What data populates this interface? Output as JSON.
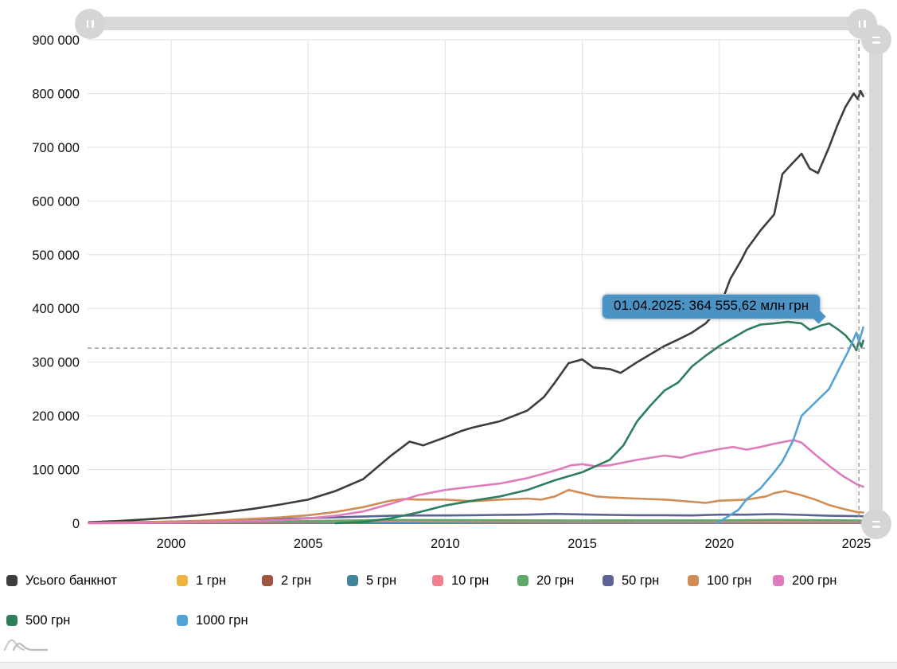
{
  "tooltip": {
    "text": "01.04.2025: 364 555,62 млн грн",
    "bg": "#4b93c5"
  },
  "cursor": {
    "x_year": 2025.09,
    "y_value": 326000
  },
  "axes": {
    "y_ticks": [
      0,
      100000,
      200000,
      300000,
      400000,
      500000,
      600000,
      700000,
      800000,
      900000
    ],
    "y_tick_labels": [
      "0",
      "100 000",
      "200 000",
      "300 000",
      "400 000",
      "500 000",
      "600 000",
      "700 000",
      "800 000",
      "900 000"
    ],
    "x_ticks": [
      2000,
      2005,
      2010,
      2015,
      2020,
      2025
    ],
    "x_tick_labels": [
      "2000",
      "2005",
      "2010",
      "2015",
      "2020",
      "2025"
    ]
  },
  "chart_data": {
    "type": "line",
    "title": "",
    "xlabel": "",
    "ylabel": "",
    "units": "млн грн",
    "xlim": [
      1996.95,
      2025.45
    ],
    "ylim": [
      0,
      900000
    ],
    "grid": true,
    "legend_position": "bottom",
    "highlighted_point": {
      "date": "01.04.2025",
      "value": 364555.62,
      "series": "1000 грн"
    },
    "series": [
      {
        "name": "Усього банкнот",
        "color": "#3d3d3d",
        "points": [
          [
            1997,
            2000
          ],
          [
            1998,
            4000
          ],
          [
            1999,
            7000
          ],
          [
            2000,
            10500
          ],
          [
            2001,
            15000
          ],
          [
            2002,
            20500
          ],
          [
            2003,
            27000
          ],
          [
            2004,
            35000
          ],
          [
            2005,
            44000
          ],
          [
            2006,
            60000
          ],
          [
            2007,
            82000
          ],
          [
            2008,
            125000
          ],
          [
            2008.7,
            152000
          ],
          [
            2009.2,
            145000
          ],
          [
            2010,
            160000
          ],
          [
            2010.6,
            172000
          ],
          [
            2011,
            178000
          ],
          [
            2012,
            190000
          ],
          [
            2013,
            210000
          ],
          [
            2013.6,
            235000
          ],
          [
            2014,
            262000
          ],
          [
            2014.5,
            298000
          ],
          [
            2015,
            305000
          ],
          [
            2015.4,
            290000
          ],
          [
            2016,
            287000
          ],
          [
            2016.4,
            280000
          ],
          [
            2017,
            300000
          ],
          [
            2017.6,
            318000
          ],
          [
            2018,
            330000
          ],
          [
            2018.5,
            342000
          ],
          [
            2019,
            355000
          ],
          [
            2019.5,
            372000
          ],
          [
            2020,
            400000
          ],
          [
            2020.4,
            455000
          ],
          [
            2020.8,
            490000
          ],
          [
            2021,
            510000
          ],
          [
            2021.5,
            545000
          ],
          [
            2022,
            575000
          ],
          [
            2022.3,
            650000
          ],
          [
            2022.7,
            672000
          ],
          [
            2023,
            688000
          ],
          [
            2023.3,
            660000
          ],
          [
            2023.6,
            652000
          ],
          [
            2024,
            700000
          ],
          [
            2024.3,
            740000
          ],
          [
            2024.6,
            775000
          ],
          [
            2024.9,
            800000
          ],
          [
            2025.05,
            790000
          ],
          [
            2025.15,
            805000
          ],
          [
            2025.25,
            795000
          ]
        ]
      },
      {
        "name": "1 грн",
        "color": "#eab53e",
        "points": [
          [
            1997,
            250
          ],
          [
            2000,
            400
          ],
          [
            2005,
            600
          ],
          [
            2010,
            650
          ],
          [
            2015,
            620
          ],
          [
            2020,
            620
          ],
          [
            2025.25,
            600
          ]
        ]
      },
      {
        "name": "2 грн",
        "color": "#a2543f",
        "points": [
          [
            1997,
            350
          ],
          [
            2000,
            550
          ],
          [
            2005,
            850
          ],
          [
            2010,
            950
          ],
          [
            2015,
            900
          ],
          [
            2020,
            900
          ],
          [
            2025.25,
            850
          ]
        ]
      },
      {
        "name": "5 грн",
        "color": "#45839d",
        "points": [
          [
            1997,
            600
          ],
          [
            2000,
            1000
          ],
          [
            2005,
            1700
          ],
          [
            2008,
            2000
          ],
          [
            2010,
            1900
          ],
          [
            2015,
            1700
          ],
          [
            2020,
            1700
          ],
          [
            2025.25,
            1600
          ]
        ]
      },
      {
        "name": "10 грн",
        "color": "#f07e8e",
        "points": [
          [
            1997,
            900
          ],
          [
            2000,
            1600
          ],
          [
            2005,
            3000
          ],
          [
            2008,
            3600
          ],
          [
            2010,
            3200
          ],
          [
            2015,
            2800
          ],
          [
            2020,
            2800
          ],
          [
            2025.25,
            2600
          ]
        ]
      },
      {
        "name": "20 грн",
        "color": "#5ea86a",
        "points": [
          [
            1997,
            600
          ],
          [
            2000,
            1500
          ],
          [
            2005,
            4200
          ],
          [
            2008,
            6200
          ],
          [
            2010,
            5800
          ],
          [
            2015,
            5200
          ],
          [
            2020,
            5400
          ],
          [
            2022,
            6200
          ],
          [
            2025.25,
            5200
          ]
        ]
      },
      {
        "name": "50 грн",
        "color": "#5d6295",
        "points": [
          [
            1997,
            1200
          ],
          [
            1999,
            2200
          ],
          [
            2000,
            3000
          ],
          [
            2002,
            5200
          ],
          [
            2004,
            8000
          ],
          [
            2005,
            9500
          ],
          [
            2006,
            11000
          ],
          [
            2007,
            12500
          ],
          [
            2008,
            14000
          ],
          [
            2009,
            14500
          ],
          [
            2010,
            14500
          ],
          [
            2011,
            15000
          ],
          [
            2012,
            15500
          ],
          [
            2013,
            16000
          ],
          [
            2014,
            17500
          ],
          [
            2015,
            16500
          ],
          [
            2016,
            15500
          ],
          [
            2017,
            15000
          ],
          [
            2018,
            15000
          ],
          [
            2019,
            14500
          ],
          [
            2020,
            16000
          ],
          [
            2021,
            16000
          ],
          [
            2022,
            17000
          ],
          [
            2023,
            15500
          ],
          [
            2024,
            14000
          ],
          [
            2025.25,
            13000
          ]
        ]
      },
      {
        "name": "100 грн",
        "color": "#d08d57",
        "points": [
          [
            1997,
            800
          ],
          [
            1999,
            2000
          ],
          [
            2000,
            3200
          ],
          [
            2002,
            6000
          ],
          [
            2004,
            11000
          ],
          [
            2005,
            15000
          ],
          [
            2006,
            21000
          ],
          [
            2007,
            30000
          ],
          [
            2008,
            42000
          ],
          [
            2008.5,
            45000
          ],
          [
            2009,
            44000
          ],
          [
            2010,
            44000
          ],
          [
            2011,
            41000
          ],
          [
            2012,
            44000
          ],
          [
            2013,
            46000
          ],
          [
            2013.5,
            44000
          ],
          [
            2014,
            50000
          ],
          [
            2014.5,
            62000
          ],
          [
            2015,
            56000
          ],
          [
            2015.5,
            50000
          ],
          [
            2016,
            48000
          ],
          [
            2017,
            46000
          ],
          [
            2018,
            44000
          ],
          [
            2019,
            40000
          ],
          [
            2019.5,
            38000
          ],
          [
            2020,
            42000
          ],
          [
            2021,
            44000
          ],
          [
            2021.7,
            50000
          ],
          [
            2022,
            56000
          ],
          [
            2022.4,
            60000
          ],
          [
            2023,
            52000
          ],
          [
            2023.5,
            44000
          ],
          [
            2024,
            34000
          ],
          [
            2024.5,
            27000
          ],
          [
            2025,
            21000
          ],
          [
            2025.25,
            20000
          ]
        ]
      },
      {
        "name": "200 грн",
        "color": "#de7cbc",
        "points": [
          [
            1997,
            200
          ],
          [
            1999,
            600
          ],
          [
            2000,
            1200
          ],
          [
            2002,
            3000
          ],
          [
            2004,
            6000
          ],
          [
            2005,
            9000
          ],
          [
            2006,
            14000
          ],
          [
            2007,
            22000
          ],
          [
            2008,
            36000
          ],
          [
            2009,
            52000
          ],
          [
            2010,
            62000
          ],
          [
            2011,
            68000
          ],
          [
            2012,
            74000
          ],
          [
            2013,
            84000
          ],
          [
            2014,
            98000
          ],
          [
            2014.6,
            108000
          ],
          [
            2015,
            110000
          ],
          [
            2015.5,
            106000
          ],
          [
            2016,
            108000
          ],
          [
            2017,
            118000
          ],
          [
            2018,
            126000
          ],
          [
            2018.6,
            122000
          ],
          [
            2019,
            128000
          ],
          [
            2020,
            138000
          ],
          [
            2020.5,
            142000
          ],
          [
            2021,
            137000
          ],
          [
            2021.5,
            142000
          ],
          [
            2022,
            148000
          ],
          [
            2022.7,
            155000
          ],
          [
            2023,
            150000
          ],
          [
            2023.5,
            128000
          ],
          [
            2024,
            107000
          ],
          [
            2024.5,
            88000
          ],
          [
            2025,
            73000
          ],
          [
            2025.25,
            68000
          ]
        ]
      },
      {
        "name": "500 грн",
        "color": "#2e7d5c",
        "points": [
          [
            2006,
            0
          ],
          [
            2007,
            2500
          ],
          [
            2008,
            9000
          ],
          [
            2009,
            20000
          ],
          [
            2010,
            33000
          ],
          [
            2011,
            42000
          ],
          [
            2012,
            50000
          ],
          [
            2013,
            62000
          ],
          [
            2014,
            80000
          ],
          [
            2015,
            95000
          ],
          [
            2016,
            118000
          ],
          [
            2016.5,
            145000
          ],
          [
            2017,
            190000
          ],
          [
            2017.5,
            220000
          ],
          [
            2018,
            247000
          ],
          [
            2018.5,
            262000
          ],
          [
            2019,
            292000
          ],
          [
            2019.5,
            312000
          ],
          [
            2020,
            330000
          ],
          [
            2020.5,
            345000
          ],
          [
            2021,
            360000
          ],
          [
            2021.5,
            370000
          ],
          [
            2022,
            372000
          ],
          [
            2022.5,
            375000
          ],
          [
            2023,
            372000
          ],
          [
            2023.3,
            360000
          ],
          [
            2023.7,
            368000
          ],
          [
            2024,
            372000
          ],
          [
            2024.3,
            362000
          ],
          [
            2024.6,
            350000
          ],
          [
            2024.85,
            335000
          ],
          [
            2025,
            322000
          ],
          [
            2025.1,
            340000
          ],
          [
            2025.18,
            328000
          ],
          [
            2025.25,
            340000
          ]
        ]
      },
      {
        "name": "1000 грн",
        "color": "#54a3d6",
        "points": [
          [
            2019.9,
            0
          ],
          [
            2020.3,
            12000
          ],
          [
            2020.7,
            25000
          ],
          [
            2021,
            45000
          ],
          [
            2021.5,
            65000
          ],
          [
            2022,
            95000
          ],
          [
            2022.3,
            115000
          ],
          [
            2022.7,
            155000
          ],
          [
            2023,
            200000
          ],
          [
            2023.5,
            225000
          ],
          [
            2024,
            250000
          ],
          [
            2024.4,
            290000
          ],
          [
            2024.7,
            320000
          ],
          [
            2025,
            355000
          ],
          [
            2025.1,
            338000
          ],
          [
            2025.25,
            364556
          ]
        ]
      }
    ]
  },
  "colors": {
    "grid": "#e2e2e2",
    "axis_text": "#111111",
    "crosshair": "#8c8c8c",
    "scrollbar": "#d9d9d9",
    "logo_gray_1": "#cccccc",
    "logo_gray_2": "#b5b5b5"
  }
}
